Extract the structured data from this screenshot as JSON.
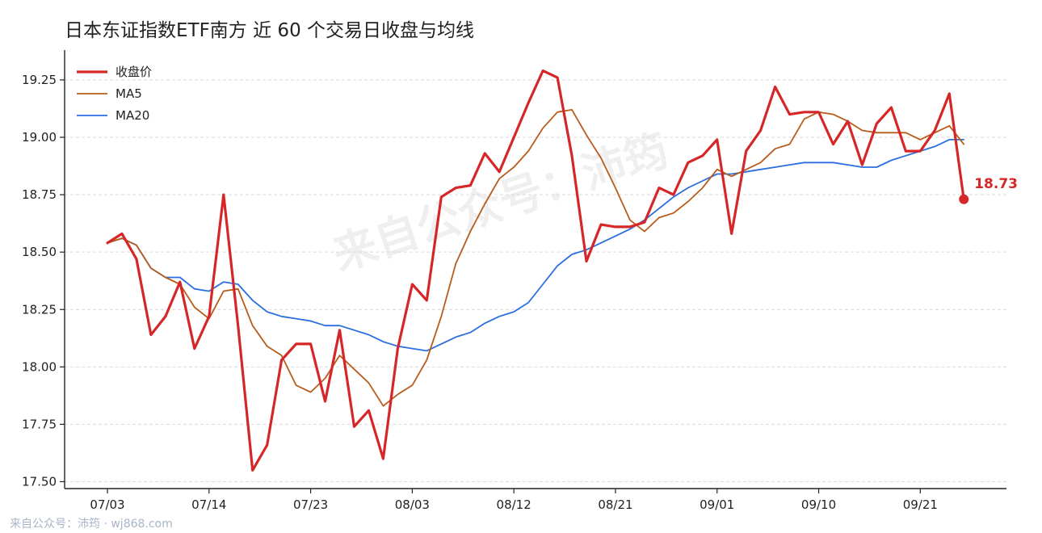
{
  "watermark": "来自公众号：沛筠",
  "footer": "来自公众号：沛筠 · wj868.com",
  "colors": {
    "close": "#d62728",
    "ma5": "#b85c1b",
    "ma20": "#2a6ee0"
  },
  "chart_data": {
    "type": "line",
    "title": "日本东证指数ETF南方 近 60 个交易日收盘与均线",
    "xlabel": "",
    "ylabel": "",
    "ylim": [
      17.47,
      19.38
    ],
    "yticks": [
      "17.50",
      "17.75",
      "18.00",
      "18.25",
      "18.50",
      "18.75",
      "19.00",
      "19.25"
    ],
    "xticks": [
      {
        "index": 0,
        "label": "07/03"
      },
      {
        "index": 7,
        "label": "07/14"
      },
      {
        "index": 14,
        "label": "07/23"
      },
      {
        "index": 21,
        "label": "08/03"
      },
      {
        "index": 28,
        "label": "08/12"
      },
      {
        "index": 35,
        "label": "08/21"
      },
      {
        "index": 42,
        "label": "09/01"
      },
      {
        "index": 49,
        "label": "09/10"
      },
      {
        "index": 56,
        "label": "09/21"
      }
    ],
    "grid": true,
    "legend_position": "top-left",
    "last_value_label": "18.73",
    "series": [
      {
        "name": "收盘价",
        "values": [
          18.54,
          18.58,
          18.47,
          18.14,
          18.22,
          18.37,
          18.08,
          18.22,
          18.75,
          18.18,
          17.55,
          17.66,
          18.03,
          18.1,
          18.1,
          17.85,
          18.16,
          17.74,
          17.81,
          17.6,
          18.08,
          18.36,
          18.29,
          18.74,
          18.78,
          18.79,
          18.93,
          18.85,
          19.0,
          19.15,
          19.29,
          19.26,
          18.92,
          18.46,
          18.62,
          18.61,
          18.61,
          18.63,
          18.78,
          18.75,
          18.89,
          18.92,
          18.99,
          18.58,
          18.94,
          19.03,
          19.22,
          19.1,
          19.11,
          19.11,
          18.97,
          19.07,
          18.88,
          19.06,
          19.13,
          18.94,
          18.94,
          19.03,
          19.19,
          18.73
        ]
      },
      {
        "name": "MA5",
        "values": [
          18.54,
          18.56,
          18.53,
          18.43,
          18.39,
          18.36,
          18.26,
          18.21,
          18.33,
          18.34,
          18.18,
          18.09,
          18.05,
          17.92,
          17.89,
          17.95,
          18.05,
          17.99,
          17.93,
          17.83,
          17.88,
          17.92,
          18.03,
          18.22,
          18.45,
          18.59,
          18.71,
          18.82,
          18.87,
          18.94,
          19.04,
          19.11,
          19.12,
          19.01,
          18.91,
          18.78,
          18.64,
          18.59,
          18.65,
          18.67,
          18.72,
          18.78,
          18.86,
          18.83,
          18.86,
          18.89,
          18.95,
          18.97,
          19.08,
          19.11,
          19.1,
          19.07,
          19.03,
          19.02,
          19.02,
          19.02,
          18.99,
          19.02,
          19.05,
          18.97
        ]
      },
      {
        "name": "MA20",
        "values": [
          18.54,
          18.56,
          18.53,
          18.43,
          18.39,
          18.39,
          18.34,
          18.33,
          18.37,
          18.36,
          18.29,
          18.24,
          18.22,
          18.21,
          18.2,
          18.18,
          18.18,
          18.16,
          18.14,
          18.11,
          18.09,
          18.08,
          18.07,
          18.1,
          18.13,
          18.15,
          18.19,
          18.22,
          18.24,
          18.28,
          18.36,
          18.44,
          18.49,
          18.51,
          18.54,
          18.57,
          18.6,
          18.64,
          18.69,
          18.74,
          18.78,
          18.81,
          18.84,
          18.84,
          18.85,
          18.86,
          18.87,
          18.88,
          18.89,
          18.89,
          18.89,
          18.88,
          18.87,
          18.87,
          18.9,
          18.92,
          18.94,
          18.96,
          18.99,
          18.99
        ]
      }
    ]
  }
}
